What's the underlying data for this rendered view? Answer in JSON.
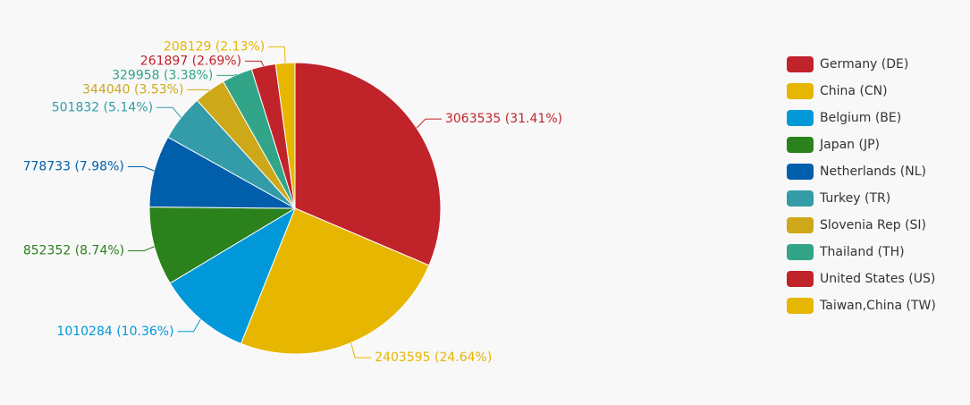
{
  "chart_data": {
    "type": "pie",
    "categories": [
      "Germany (DE)",
      "China (CN)",
      "Belgium (BE)",
      "Japan (JP)",
      "Netherlands (NL)",
      "Turkey (TR)",
      "Slovenia Rep (SI)",
      "Thailand (TH)",
      "United States (US)",
      "Taiwan,China (TW)"
    ],
    "values": [
      3063535,
      2403595,
      1010284,
      852352,
      778733,
      501832,
      344040,
      329958,
      261897,
      208129
    ],
    "value_labels": [
      "3063535 (31.41%)",
      "2403595 (24.64%)",
      "1010284 (10.36%)",
      "852352 (8.74%)",
      "778733 (7.98%)",
      "501832 (5.14%)",
      "344040 (3.53%)",
      "329958 (3.38%)",
      "261897 (2.69%)",
      "208129 (2.13%)"
    ],
    "colors": [
      "#c1232b",
      "#e6b600",
      "#0098d9",
      "#2b821d",
      "#005eaa",
      "#339ca8",
      "#cda819",
      "#32a487",
      "#c1232b",
      "#e6b600"
    ],
    "legend": "right"
  }
}
